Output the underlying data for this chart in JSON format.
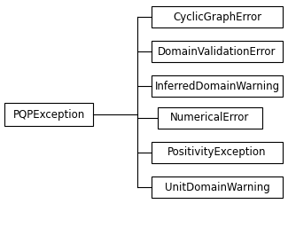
{
  "background_color": "#ffffff",
  "box_fill_color": "#ffffff",
  "box_edge_color": "#000000",
  "text_color": "#000000",
  "line_color": "#000000",
  "parent_label": "PQPException",
  "children": [
    "CyclicGraphError",
    "DomainValidationError",
    "InferredDomainWarning",
    "NumericalError",
    "PositivityException",
    "UnitDomainWarning"
  ],
  "figw": 3.25,
  "figh": 2.83,
  "dpi": 100,
  "font_size": 8.5
}
